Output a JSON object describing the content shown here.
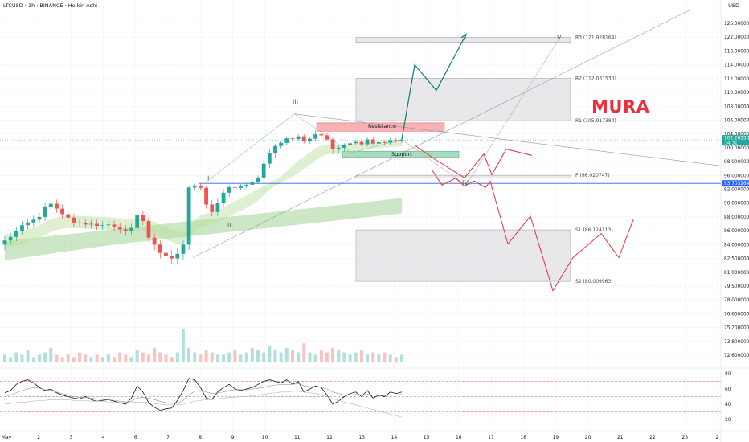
{
  "header": {
    "symbol": "LTCUSD · 1h · BINANCE · Heikin Ashi",
    "currency": "USD"
  },
  "watermark": "MURA",
  "colors": {
    "up": "#26a69a",
    "down": "#ef5350",
    "path_green": "#127a6e",
    "path_red": "#e8313d",
    "hline": "#2962ff",
    "zone_grey": "#d8d9de",
    "resistance": "#f4a6a8",
    "support": "#9fd3b0"
  },
  "chart_data": {
    "type": "candlestick",
    "price_axis": {
      "ticks": [
        "126.000000",
        "122.000000",
        "118.000000",
        "114.000000",
        "112.000000",
        "110.000000",
        "108.000000",
        "106.000000",
        "104.000000",
        "100.000000",
        "98.000000",
        "96.000000",
        "92.000000",
        "90.000000",
        "88.000000",
        "86.000000",
        "84.000000",
        "82.500000",
        "81.000000",
        "79.500000",
        "78.000000",
        "76.600000",
        "75.200000",
        "73.800000",
        "72.600000"
      ],
      "tick_values": [
        126,
        122,
        118,
        114,
        112,
        110,
        108,
        106,
        104,
        100,
        98,
        96,
        92,
        90,
        88,
        86,
        84,
        82.5,
        81,
        79.5,
        78,
        76.6,
        75.2,
        73.8,
        72.6
      ],
      "current_price": "102.265538",
      "current_countdown": "34:31",
      "line_price": "93.703264",
      "line_value": 93.703264
    },
    "time_axis": {
      "labels": [
        "May",
        "2",
        "3",
        "4",
        "6",
        "7",
        "8",
        "9",
        "10",
        "11",
        "12",
        "13",
        "14",
        "15",
        "16",
        "17",
        "18",
        "19",
        "20",
        "21",
        "22",
        "23",
        "2"
      ]
    },
    "levels": [
      {
        "name": "R3 (121.928164)",
        "value": 121.928164
      },
      {
        "name": "R2 (112.031530)",
        "value": 112.03153
      },
      {
        "name": "R1 (105.917380)",
        "value": 105.91738
      },
      {
        "name": "P (96.020747)",
        "value": 96.020747
      },
      {
        "name": "S1 (86.124113)",
        "value": 86.124113
      },
      {
        "name": "S2 (80.009963)",
        "value": 80.009963
      }
    ],
    "zones": [
      {
        "label": "Resistance",
        "low": 104.4,
        "high": 105.6
      },
      {
        "label": "Support",
        "low": 98.6,
        "high": 99.5
      }
    ],
    "wave_labels": [
      "I",
      "II",
      "III",
      "IV",
      "V"
    ],
    "close_path": [
      84.6,
      85.1,
      86.0,
      86.8,
      87.2,
      87.6,
      88.0,
      89.4,
      89.9,
      89.2,
      88.4,
      87.9,
      87.2,
      87.1,
      86.9,
      87.0,
      86.7,
      86.8,
      86.9,
      86.5,
      86.2,
      85.9,
      86.4,
      88.3,
      87.4,
      85.0,
      84.0,
      83.1,
      82.8,
      82.5,
      83.0,
      84.0,
      92.5,
      93.0,
      92.4,
      89.8,
      88.7,
      90.0,
      91.5,
      92.6,
      92.4,
      92.9,
      93.3,
      94.1,
      95.4,
      97.7,
      99.2,
      100.5,
      101.4,
      102.7,
      102.5,
      103.3,
      101.8,
      102.6,
      103.9,
      103.6,
      102.4,
      99.8,
      100.0,
      100.7,
      101.3,
      101.7,
      101.0,
      102.4,
      101.2,
      101.6,
      101.5,
      102.2,
      102.0,
      102.3
    ],
    "rsi": {
      "ticks": [
        "80",
        "60",
        "40",
        "20"
      ],
      "tick_values": [
        80,
        60,
        40,
        20
      ],
      "levels": [
        70,
        50,
        30
      ],
      "values": [
        55,
        58,
        66,
        70,
        72,
        68,
        62,
        58,
        60,
        55,
        52,
        50,
        48,
        47,
        50,
        46,
        44,
        45,
        46,
        44,
        42,
        40,
        48,
        64,
        56,
        42,
        36,
        32,
        34,
        35,
        45,
        58,
        74,
        72,
        62,
        48,
        46,
        56,
        62,
        66,
        60,
        58,
        60,
        62,
        66,
        70,
        72,
        70,
        68,
        72,
        66,
        70,
        56,
        60,
        64,
        62,
        52,
        40,
        44,
        50,
        54,
        56,
        50,
        58,
        48,
        52,
        50,
        56,
        54,
        56
      ],
      "signal": [
        50,
        52,
        55,
        58,
        60,
        62,
        61,
        59,
        58,
        56,
        54,
        52,
        50,
        49,
        49,
        48,
        47,
        46,
        46,
        45,
        44,
        43,
        44,
        48,
        49,
        48,
        46,
        44,
        42,
        41,
        42,
        45,
        52,
        57,
        58,
        56,
        54,
        55,
        56,
        58,
        59,
        59,
        59,
        60,
        61,
        62,
        64,
        65,
        66,
        66,
        66,
        67,
        64,
        63,
        63,
        62,
        60,
        56,
        54,
        52,
        52,
        53,
        52,
        53,
        52,
        52,
        51,
        52,
        52,
        53
      ],
      "long_line": [
        40,
        41,
        42,
        43,
        43,
        44,
        45,
        45,
        46,
        46,
        46,
        46,
        45,
        45,
        45,
        44,
        44,
        44,
        43,
        43,
        42,
        42,
        42,
        43,
        43,
        42,
        41,
        40,
        39,
        39,
        39,
        40,
        42,
        44,
        45,
        46,
        46,
        47,
        48,
        49,
        49,
        50,
        50,
        51,
        52,
        53,
        54,
        55,
        56,
        56,
        57,
        57,
        56,
        55,
        54,
        52,
        50,
        47,
        45,
        43,
        41,
        39,
        37,
        35,
        33,
        31,
        29,
        27,
        25,
        23
      ]
    },
    "volume": [
      3,
      2,
      4,
      3,
      5,
      2,
      3,
      4,
      6,
      3,
      2,
      3,
      2,
      4,
      3,
      2,
      3,
      2,
      3,
      2,
      4,
      3,
      2,
      5,
      4,
      3,
      6,
      4,
      3,
      2,
      4,
      14,
      6,
      4,
      3,
      5,
      4,
      3,
      3,
      4,
      5,
      3,
      4,
      6,
      5,
      4,
      7,
      5,
      4,
      6,
      5,
      4,
      8,
      4,
      3,
      5,
      4,
      6,
      5,
      4,
      3,
      4,
      5,
      3,
      4,
      3,
      4,
      3,
      2,
      3
    ]
  }
}
